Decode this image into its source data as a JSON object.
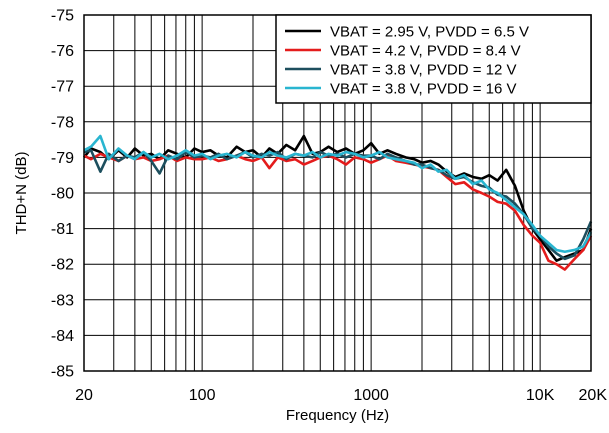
{
  "chart_data": {
    "type": "line",
    "xlabel": "Frequency (Hz)",
    "ylabel": "THD+N (dB)",
    "xscale": "log",
    "xlim": [
      20,
      20000
    ],
    "ylim": [
      -85,
      -75
    ],
    "x_ticks": [
      {
        "value": 20,
        "label": "20"
      },
      {
        "value": 100,
        "label": "100"
      },
      {
        "value": 1000,
        "label": "1000"
      },
      {
        "value": 10000,
        "label": "10K"
      },
      {
        "value": 20000,
        "label": "20K"
      }
    ],
    "y_ticks": [
      {
        "value": -75,
        "label": "-75"
      },
      {
        "value": -76,
        "label": "-76"
      },
      {
        "value": -77,
        "label": "-77"
      },
      {
        "value": -78,
        "label": "-78"
      },
      {
        "value": -79,
        "label": "-79"
      },
      {
        "value": -80,
        "label": "-80"
      },
      {
        "value": -81,
        "label": "-81"
      },
      {
        "value": -82,
        "label": "-82"
      },
      {
        "value": -83,
        "label": "-83"
      },
      {
        "value": -84,
        "label": "-84"
      },
      {
        "value": -85,
        "label": "-85"
      }
    ],
    "grid": true,
    "legend_position": "top-right",
    "x": [
      20,
      22,
      25,
      28,
      32,
      36,
      40,
      45,
      50,
      56,
      63,
      71,
      80,
      90,
      100,
      112,
      125,
      140,
      160,
      180,
      200,
      225,
      250,
      280,
      315,
      355,
      400,
      450,
      500,
      560,
      630,
      710,
      800,
      900,
      1000,
      1120,
      1250,
      1400,
      1600,
      1800,
      2000,
      2250,
      2500,
      2800,
      3150,
      3550,
      4000,
      4500,
      5000,
      5600,
      6300,
      7100,
      8000,
      9000,
      10000,
      11200,
      12500,
      14000,
      16000,
      18000,
      20000
    ],
    "series": [
      {
        "name": "VBAT = 2.95 V, PVDD = 6.5 V",
        "color": "#000000",
        "values": [
          -79.0,
          -78.75,
          -78.85,
          -79.05,
          -78.8,
          -79.0,
          -78.75,
          -78.95,
          -78.9,
          -79.05,
          -78.8,
          -78.9,
          -79.0,
          -78.75,
          -78.85,
          -78.8,
          -78.95,
          -79.0,
          -78.7,
          -78.85,
          -78.8,
          -79.0,
          -78.75,
          -78.9,
          -78.65,
          -78.8,
          -78.4,
          -78.9,
          -78.85,
          -78.7,
          -78.85,
          -78.75,
          -78.9,
          -78.8,
          -78.6,
          -78.9,
          -78.8,
          -78.9,
          -79.0,
          -79.05,
          -79.15,
          -79.1,
          -79.2,
          -79.4,
          -79.55,
          -79.45,
          -79.55,
          -79.6,
          -79.5,
          -79.65,
          -79.35,
          -79.8,
          -80.5,
          -81.0,
          -81.3,
          -81.6,
          -81.9,
          -81.8,
          -81.7,
          -81.6,
          -81.0
        ]
      },
      {
        "name": "VBAT = 4.2 V, PVDD = 8.4 V",
        "color": "#e41c1c",
        "values": [
          -78.95,
          -79.05,
          -78.9,
          -79.0,
          -79.1,
          -78.95,
          -79.05,
          -79.0,
          -79.1,
          -79.05,
          -78.95,
          -79.1,
          -79.0,
          -79.05,
          -79.05,
          -79.0,
          -79.1,
          -79.05,
          -78.95,
          -79.05,
          -79.1,
          -79.0,
          -79.3,
          -79.0,
          -79.1,
          -79.05,
          -79.2,
          -79.1,
          -79.0,
          -78.95,
          -79.05,
          -79.2,
          -79.0,
          -79.05,
          -79.15,
          -79.05,
          -78.95,
          -79.1,
          -79.15,
          -79.2,
          -79.25,
          -79.3,
          -79.35,
          -79.55,
          -79.75,
          -79.7,
          -79.9,
          -80.0,
          -80.1,
          -80.25,
          -80.3,
          -80.5,
          -80.9,
          -81.2,
          -81.4,
          -81.9,
          -82.0,
          -82.15,
          -81.85,
          -81.6,
          -81.2
        ]
      },
      {
        "name": "VBAT = 3.8 V, PVDD = 12 V",
        "color": "#1d4f5e",
        "values": [
          -78.85,
          -78.8,
          -79.4,
          -78.9,
          -79.1,
          -78.95,
          -79.0,
          -78.85,
          -79.1,
          -79.45,
          -78.95,
          -79.05,
          -78.85,
          -79.0,
          -78.95,
          -79.0,
          -78.9,
          -79.05,
          -78.95,
          -78.85,
          -79.0,
          -78.9,
          -78.95,
          -78.85,
          -79.05,
          -78.9,
          -78.95,
          -79.0,
          -78.85,
          -78.95,
          -78.9,
          -79.0,
          -78.9,
          -78.95,
          -78.95,
          -79.05,
          -78.9,
          -79.0,
          -79.1,
          -79.2,
          -79.2,
          -79.3,
          -79.35,
          -79.5,
          -79.6,
          -79.55,
          -79.7,
          -79.8,
          -79.85,
          -80.05,
          -80.1,
          -80.3,
          -80.6,
          -81.0,
          -81.2,
          -81.5,
          -81.7,
          -81.85,
          -81.75,
          -81.3,
          -80.8
        ]
      },
      {
        "name": "VBAT = 3.8 V, PVDD = 16 V",
        "color": "#29b5d0",
        "values": [
          -78.8,
          -78.7,
          -78.4,
          -79.05,
          -78.75,
          -78.95,
          -79.05,
          -78.85,
          -79.0,
          -78.9,
          -79.05,
          -78.95,
          -78.8,
          -78.95,
          -78.9,
          -79.05,
          -78.95,
          -78.9,
          -79.0,
          -78.85,
          -78.95,
          -79.0,
          -78.85,
          -78.95,
          -79.0,
          -78.9,
          -78.95,
          -78.85,
          -79.0,
          -78.9,
          -78.95,
          -78.85,
          -78.9,
          -79.0,
          -78.95,
          -78.85,
          -79.0,
          -79.05,
          -79.1,
          -79.15,
          -79.3,
          -79.2,
          -79.4,
          -79.35,
          -79.6,
          -79.5,
          -79.75,
          -79.65,
          -79.9,
          -80.0,
          -80.2,
          -80.4,
          -80.6,
          -80.9,
          -81.2,
          -81.4,
          -81.6,
          -81.65,
          -81.6,
          -81.5,
          -81.1
        ]
      }
    ]
  }
}
